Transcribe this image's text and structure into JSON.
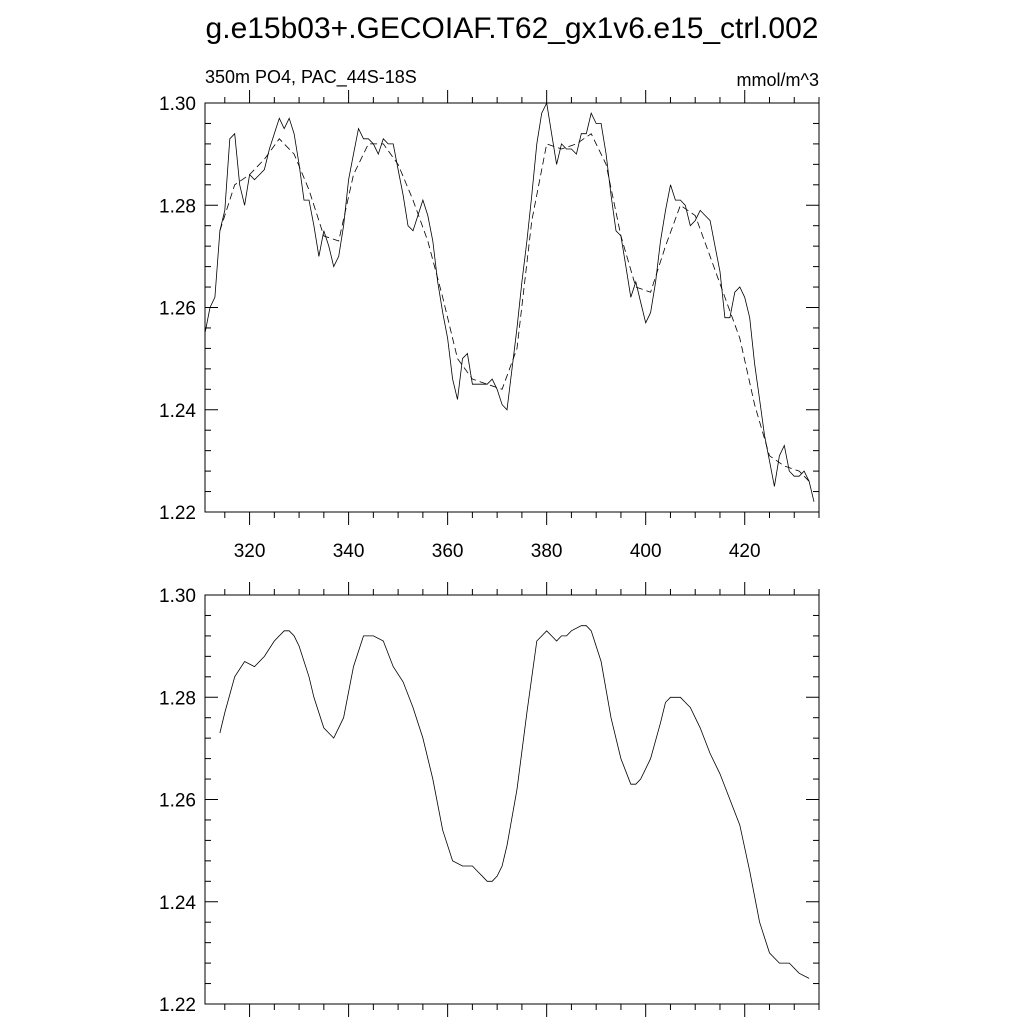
{
  "title": "g.e15b03+.GECOIAF.T62_gx1v6.e15_ctrl.002",
  "chart_data": [
    {
      "type": "line",
      "subtitle_left": "350m PO4, PAC_44S-18S",
      "subtitle_right": "mmol/m^3",
      "xlim": [
        311,
        435
      ],
      "ylim": [
        1.22,
        1.3
      ],
      "x_ticks": [
        320,
        340,
        360,
        380,
        400,
        420
      ],
      "x_tick_labels": [
        "320",
        "340",
        "360",
        "380",
        "400",
        "420"
      ],
      "y_ticks": [
        1.22,
        1.24,
        1.26,
        1.28,
        1.3
      ],
      "y_tick_labels": [
        "1.22",
        "1.24",
        "1.26",
        "1.28",
        "1.30"
      ],
      "grid": false,
      "series": [
        {
          "style": "solid",
          "x": [
            311,
            312,
            313,
            314,
            315,
            316,
            317,
            318,
            319,
            320,
            321,
            322,
            323,
            324,
            325,
            326,
            327,
            328,
            329,
            330,
            331,
            332,
            333,
            334,
            335,
            336,
            337,
            338,
            339,
            340,
            341,
            342,
            343,
            344,
            345,
            346,
            347,
            348,
            349,
            350,
            351,
            352,
            353,
            354,
            355,
            356,
            357,
            358,
            359,
            360,
            361,
            362,
            363,
            364,
            365,
            366,
            367,
            368,
            369,
            370,
            371,
            372,
            373,
            374,
            375,
            376,
            377,
            378,
            379,
            380,
            381,
            382,
            383,
            384,
            385,
            386,
            387,
            388,
            389,
            390,
            391,
            392,
            393,
            394,
            395,
            396,
            397,
            398,
            399,
            400,
            401,
            402,
            403,
            404,
            405,
            406,
            407,
            408,
            409,
            410,
            411,
            412,
            413,
            414,
            415,
            416,
            417,
            418,
            419,
            420,
            421,
            422,
            423,
            424,
            425,
            426,
            427,
            428,
            429,
            430,
            431,
            432,
            433,
            434
          ],
          "y": [
            1.255,
            1.26,
            1.262,
            1.275,
            1.279,
            1.293,
            1.294,
            1.284,
            1.28,
            1.286,
            1.285,
            1.286,
            1.287,
            1.291,
            1.294,
            1.297,
            1.295,
            1.297,
            1.294,
            1.288,
            1.281,
            1.281,
            1.276,
            1.27,
            1.275,
            1.272,
            1.268,
            1.27,
            1.276,
            1.285,
            1.29,
            1.295,
            1.293,
            1.293,
            1.292,
            1.29,
            1.293,
            1.292,
            1.292,
            1.287,
            1.282,
            1.276,
            1.275,
            1.278,
            1.281,
            1.278,
            1.273,
            1.265,
            1.259,
            1.254,
            1.246,
            1.242,
            1.25,
            1.251,
            1.245,
            1.245,
            1.245,
            1.245,
            1.246,
            1.244,
            1.241,
            1.24,
            1.248,
            1.256,
            1.265,
            1.273,
            1.282,
            1.292,
            1.298,
            1.3,
            1.294,
            1.288,
            1.292,
            1.291,
            1.291,
            1.29,
            1.294,
            1.294,
            1.298,
            1.296,
            1.296,
            1.29,
            1.282,
            1.275,
            1.274,
            1.268,
            1.262,
            1.265,
            1.261,
            1.257,
            1.259,
            1.265,
            1.273,
            1.279,
            1.284,
            1.281,
            1.281,
            1.28,
            1.276,
            1.277,
            1.279,
            1.278,
            1.277,
            1.272,
            1.267,
            1.258,
            1.258,
            1.263,
            1.264,
            1.262,
            1.258,
            1.249,
            1.242,
            1.235,
            1.23,
            1.225,
            1.231,
            1.233,
            1.228,
            1.227,
            1.227,
            1.228,
            1.226,
            1.222
          ]
        },
        {
          "style": "dashed",
          "x": [
            314,
            317,
            320,
            323,
            326,
            329,
            332,
            335,
            338,
            341,
            344,
            347,
            350,
            353,
            356,
            359,
            362,
            365,
            368,
            371,
            374,
            377,
            380,
            383,
            386,
            389,
            392,
            395,
            398,
            401,
            404,
            407,
            410,
            413,
            416,
            419,
            422,
            425,
            428,
            431,
            433
          ],
          "y": [
            1.275,
            1.284,
            1.286,
            1.289,
            1.293,
            1.29,
            1.283,
            1.274,
            1.273,
            1.286,
            1.292,
            1.292,
            1.288,
            1.281,
            1.273,
            1.262,
            1.25,
            1.246,
            1.245,
            1.244,
            1.252,
            1.277,
            1.292,
            1.291,
            1.292,
            1.294,
            1.288,
            1.274,
            1.264,
            1.263,
            1.272,
            1.28,
            1.278,
            1.27,
            1.262,
            1.254,
            1.241,
            1.231,
            1.229,
            1.228,
            1.226
          ]
        }
      ]
    },
    {
      "type": "line",
      "xlim": [
        311,
        435
      ],
      "ylim": [
        1.22,
        1.3
      ],
      "x_ticks": [
        320,
        340,
        360,
        380,
        400,
        420
      ],
      "y_ticks": [
        1.22,
        1.24,
        1.26,
        1.28,
        1.3
      ],
      "y_tick_labels": [
        "1.22",
        "1.24",
        "1.26",
        "1.28",
        "1.30"
      ],
      "grid": false,
      "series": [
        {
          "style": "solid",
          "x": [
            314,
            315,
            317,
            319,
            321,
            323,
            325,
            327,
            328,
            329,
            330,
            332,
            333,
            335,
            337,
            339,
            341,
            343,
            345,
            347,
            349,
            351,
            353,
            355,
            357,
            359,
            361,
            363,
            365,
            366,
            367,
            368,
            369,
            370,
            371,
            372,
            374,
            376,
            378,
            380,
            381,
            382,
            383,
            384,
            385,
            387,
            388,
            389,
            391,
            393,
            395,
            397,
            398,
            399,
            401,
            403,
            404,
            405,
            406,
            407,
            408,
            409,
            411,
            413,
            415,
            417,
            419,
            421,
            423,
            425,
            427,
            429,
            431,
            433
          ],
          "y": [
            1.273,
            1.277,
            1.284,
            1.287,
            1.286,
            1.288,
            1.291,
            1.293,
            1.293,
            1.292,
            1.29,
            1.284,
            1.28,
            1.274,
            1.272,
            1.276,
            1.286,
            1.292,
            1.292,
            1.291,
            1.286,
            1.283,
            1.278,
            1.272,
            1.264,
            1.254,
            1.248,
            1.247,
            1.247,
            1.246,
            1.245,
            1.244,
            1.244,
            1.245,
            1.247,
            1.251,
            1.262,
            1.277,
            1.291,
            1.293,
            1.292,
            1.291,
            1.292,
            1.292,
            1.293,
            1.294,
            1.294,
            1.293,
            1.287,
            1.276,
            1.268,
            1.263,
            1.263,
            1.264,
            1.268,
            1.275,
            1.279,
            1.28,
            1.28,
            1.28,
            1.279,
            1.278,
            1.274,
            1.269,
            1.265,
            1.26,
            1.255,
            1.246,
            1.236,
            1.23,
            1.228,
            1.228,
            1.226,
            1.225
          ]
        }
      ]
    }
  ]
}
